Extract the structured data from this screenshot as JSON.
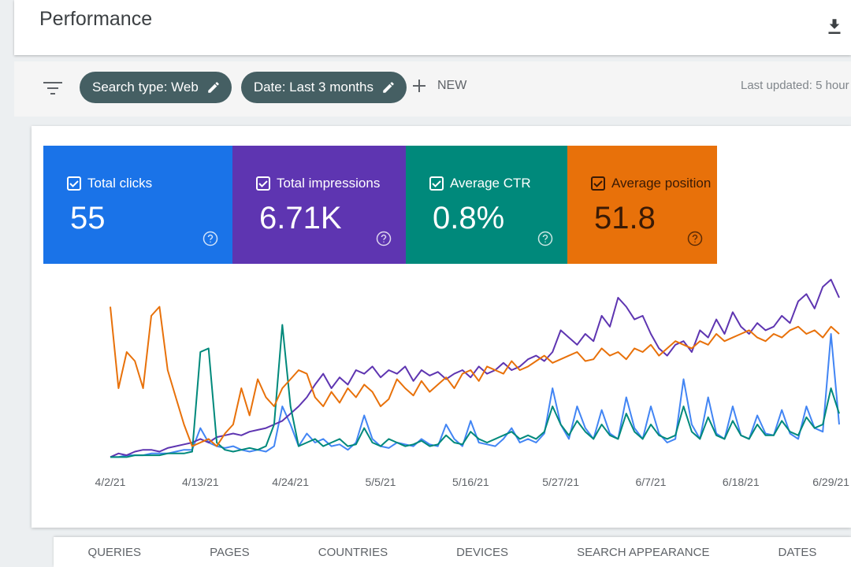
{
  "header": {
    "title": "Performance"
  },
  "filters": {
    "chips": [
      "Search type: Web",
      "Date: Last 3 months"
    ],
    "new": "NEW",
    "last_updated": "Last updated: 5 hour"
  },
  "metrics": [
    {
      "label": "Total clicks",
      "value": "55",
      "color": "#1a73e8",
      "text_color": "#ffffff"
    },
    {
      "label": "Total impressions",
      "value": "6.71K",
      "color": "#5e35b1",
      "text_color": "#ffffff"
    },
    {
      "label": "Average CTR",
      "value": "0.8%",
      "color": "#00897b",
      "text_color": "#ffffff"
    },
    {
      "label": "Average position",
      "value": "51.8",
      "color": "#e8710a",
      "text_color": "#3a1a05"
    }
  ],
  "chart_data": {
    "type": "line",
    "categories": [
      "4/2/21",
      null,
      null,
      null,
      null,
      null,
      null,
      null,
      null,
      null,
      null,
      "4/13/21",
      null,
      null,
      null,
      null,
      null,
      null,
      null,
      null,
      null,
      null,
      "4/24/21",
      null,
      null,
      null,
      null,
      null,
      null,
      null,
      null,
      null,
      null,
      "5/5/21",
      null,
      null,
      null,
      null,
      null,
      null,
      null,
      null,
      null,
      null,
      "5/16/21",
      null,
      null,
      null,
      null,
      null,
      null,
      null,
      null,
      null,
      null,
      "5/27/21",
      null,
      null,
      null,
      null,
      null,
      null,
      null,
      null,
      null,
      null,
      "6/7/21",
      null,
      null,
      null,
      null,
      null,
      null,
      null,
      null,
      null,
      null,
      "6/18/21",
      null,
      null,
      null,
      null,
      null,
      null,
      null,
      null,
      null,
      null,
      "6/29/21",
      null
    ],
    "series": [
      {
        "name": "Total clicks",
        "color": "#4285f4",
        "values": [
          2,
          2,
          3,
          3,
          3,
          4,
          4,
          4,
          5,
          6,
          6,
          18,
          10,
          8,
          7,
          8,
          6,
          5,
          6,
          5,
          8,
          30,
          20,
          8,
          15,
          10,
          12,
          8,
          9,
          6,
          10,
          25,
          12,
          8,
          7,
          10,
          9,
          8,
          12,
          9,
          8,
          20,
          12,
          8,
          22,
          10,
          9,
          8,
          12,
          18,
          10,
          12,
          10,
          15,
          40,
          20,
          12,
          30,
          18,
          12,
          28,
          15,
          12,
          35,
          18,
          12,
          30,
          15,
          10,
          12,
          45,
          20,
          12,
          35,
          15,
          12,
          30,
          14,
          12,
          25,
          15,
          14,
          28,
          15,
          12,
          30,
          18,
          16,
          70,
          20
        ]
      },
      {
        "name": "Total impressions",
        "color": "#5e35b1",
        "values": [
          2,
          4,
          3,
          5,
          6,
          6,
          5,
          7,
          8,
          9,
          10,
          12,
          10,
          13,
          14,
          15,
          14,
          16,
          17,
          18,
          20,
          22,
          26,
          30,
          35,
          42,
          48,
          40,
          46,
          42,
          50,
          48,
          52,
          46,
          50,
          48,
          52,
          44,
          50,
          47,
          49,
          45,
          48,
          50,
          46,
          52,
          48,
          50,
          54,
          50,
          52,
          56,
          58,
          55,
          60,
          72,
          68,
          64,
          70,
          66,
          80,
          74,
          90,
          85,
          78,
          80,
          70,
          62,
          58,
          64,
          66,
          60,
          72,
          68,
          78,
          70,
          82,
          74,
          70,
          76,
          72,
          74,
          80,
          76,
          88,
          92,
          84,
          96,
          100,
          90
        ]
      },
      {
        "name": "Average CTR",
        "color": "#00897b",
        "values": [
          2,
          2,
          2,
          3,
          3,
          3,
          3,
          4,
          4,
          4,
          5,
          60,
          62,
          10,
          6,
          5,
          6,
          7,
          6,
          8,
          20,
          75,
          30,
          8,
          10,
          12,
          8,
          10,
          12,
          8,
          9,
          18,
          10,
          8,
          12,
          10,
          8,
          9,
          11,
          8,
          9,
          14,
          10,
          9,
          16,
          12,
          10,
          12,
          14,
          16,
          12,
          14,
          12,
          16,
          30,
          20,
          14,
          22,
          16,
          12,
          20,
          14,
          12,
          26,
          16,
          12,
          20,
          14,
          12,
          14,
          30,
          16,
          12,
          24,
          14,
          12,
          22,
          14,
          12,
          20,
          14,
          14,
          22,
          16,
          14,
          24,
          18,
          20,
          40,
          26
        ]
      },
      {
        "name": "Average position",
        "color": "#e8710a",
        "values": [
          85,
          40,
          60,
          55,
          40,
          80,
          85,
          50,
          35,
          20,
          8,
          10,
          12,
          8,
          15,
          20,
          40,
          25,
          45,
          35,
          30,
          40,
          45,
          50,
          48,
          35,
          30,
          38,
          32,
          40,
          35,
          42,
          38,
          30,
          34,
          45,
          40,
          36,
          44,
          38,
          42,
          46,
          40,
          48,
          50,
          44,
          52,
          50,
          48,
          55,
          50,
          52,
          55,
          58,
          54,
          56,
          58,
          60,
          55,
          56,
          62,
          58,
          60,
          56,
          62,
          60,
          64,
          58,
          62,
          66,
          64,
          62,
          66,
          64,
          70,
          66,
          68,
          70,
          72,
          68,
          66,
          70,
          68,
          72,
          74,
          70,
          72,
          68,
          74,
          70
        ]
      }
    ]
  },
  "tabs": [
    "QUERIES",
    "PAGES",
    "COUNTRIES",
    "DEVICES",
    "SEARCH APPEARANCE",
    "DATES"
  ]
}
